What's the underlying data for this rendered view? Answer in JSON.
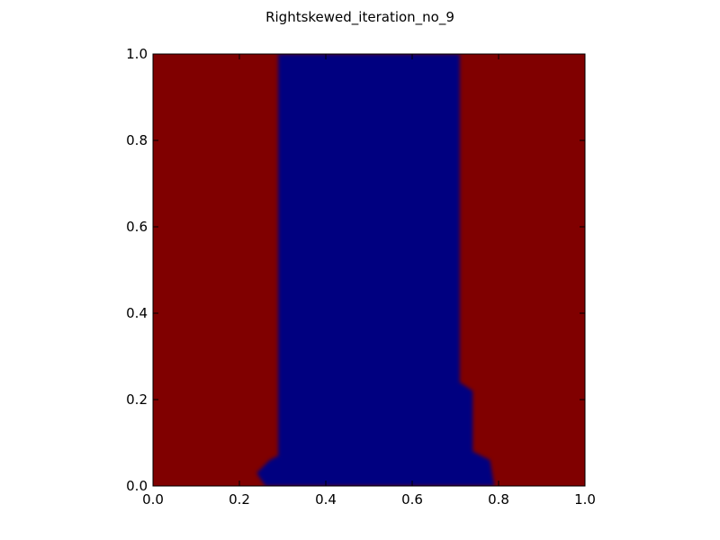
{
  "chart_data": {
    "type": "heatmap",
    "title": "Rightskewed_iteration_no_9",
    "xlabel": "",
    "ylabel": "",
    "xlim": [
      0.0,
      1.0
    ],
    "ylim": [
      0.0,
      1.0
    ],
    "xticks": [
      "0.0",
      "0.2",
      "0.4",
      "0.6",
      "0.8",
      "1.0"
    ],
    "yticks": [
      "0.0",
      "0.2",
      "0.4",
      "0.6",
      "0.8",
      "1.0"
    ],
    "grid": false,
    "colors": {
      "background_region": "#800000",
      "central_region": "#000080",
      "axes": "#000000"
    },
    "regions": [
      {
        "name": "blue-region",
        "color": "#000080",
        "boundary": [
          [
            0.29,
            1.0
          ],
          [
            0.71,
            1.0
          ],
          [
            0.71,
            0.24
          ],
          [
            0.74,
            0.22
          ],
          [
            0.74,
            0.08
          ],
          [
            0.78,
            0.06
          ],
          [
            0.79,
            0.0
          ],
          [
            0.26,
            0.0
          ],
          [
            0.24,
            0.03
          ],
          [
            0.27,
            0.06
          ],
          [
            0.29,
            0.07
          ]
        ]
      }
    ]
  }
}
